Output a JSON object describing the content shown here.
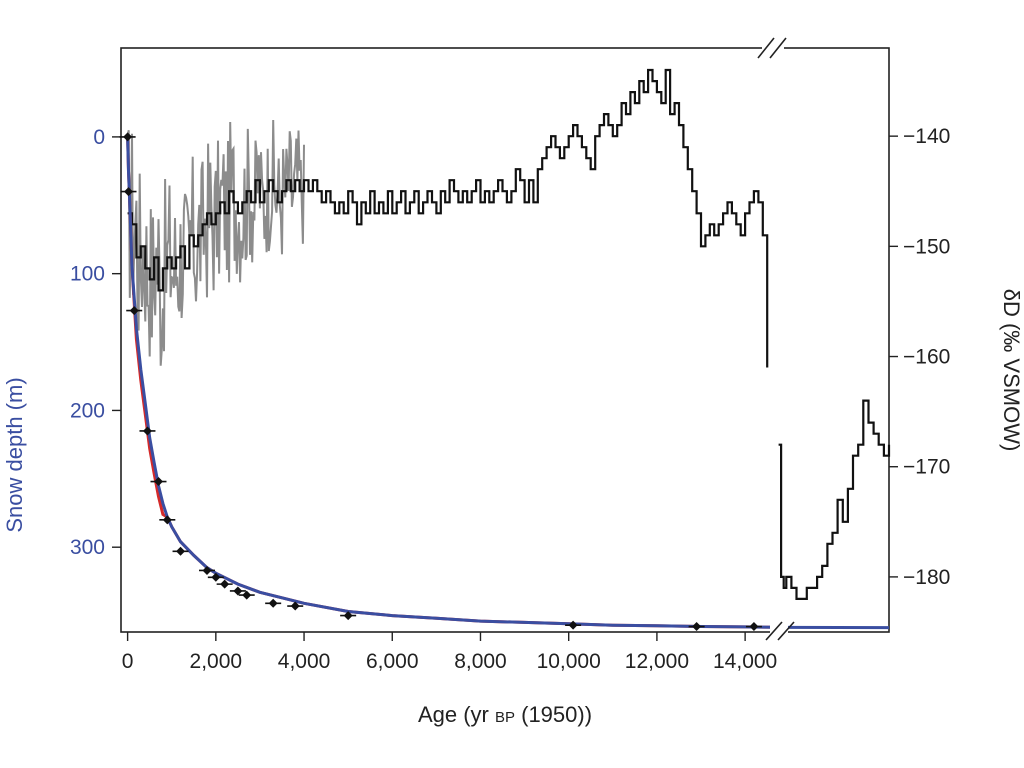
{
  "chart_data": {
    "type": "line",
    "xlabel_pre": "Age (yr ",
    "xlabel_bp": "BP",
    "xlabel_post": " (1950))",
    "ylabel_left": "Snow depth (m)",
    "ylabel_right": "δD (‰ VSMOW)",
    "x_ticks": [
      0,
      2000,
      4000,
      6000,
      8000,
      10000,
      12000,
      14000
    ],
    "x_tick_labels": [
      "0",
      "2,000",
      "4,000",
      "6,000",
      "8,000",
      "10,000",
      "12,000",
      "14,000"
    ],
    "x_break_at": 14700,
    "xlim_main": [
      -150,
      14700
    ],
    "xlim_after_break": [
      15000,
      17200
    ],
    "y_left_ticks": [
      0,
      100,
      200,
      300
    ],
    "y_left_tick_labels": [
      "0",
      "100",
      "200",
      "300"
    ],
    "ylim_left_reversed": [
      -65,
      362
    ],
    "y_right_ticks": [
      -140,
      -150,
      -160,
      -170,
      -180
    ],
    "y_right_tick_labels": [
      "−140",
      "−150",
      "−160",
      "−170",
      "−180"
    ],
    "ylim_right": [
      -185,
      -132
    ],
    "grid": false,
    "colors": {
      "isotope_highres": "#8c8c8c",
      "isotope_stepped": "#111111",
      "depth_age_model_red": "#d42a2a",
      "depth_age_model_blue": "#3a4ea1",
      "tie_points": "#111111",
      "left_axis_text": "#3a4ea1"
    },
    "series": [
      {
        "role": "isotope_stepped",
        "axis": "right",
        "x": [
          0,
          100,
          200,
          300,
          400,
          500,
          600,
          700,
          800,
          900,
          1000,
          1100,
          1200,
          1300,
          1400,
          1500,
          1600,
          1700,
          1800,
          1900,
          2000,
          2100,
          2200,
          2300,
          2400,
          2500,
          2600,
          2700,
          2800,
          2900,
          3000,
          3100,
          3200,
          3300,
          3400,
          3500,
          3600,
          3700,
          3800,
          3900,
          4000,
          4100,
          4200,
          4300,
          4400,
          4500,
          4600,
          4700,
          4800,
          4900,
          5000,
          5100,
          5200,
          5300,
          5400,
          5500,
          5600,
          5700,
          5800,
          5900,
          6000,
          6100,
          6200,
          6300,
          6400,
          6500,
          6600,
          6700,
          6800,
          6900,
          7000,
          7100,
          7200,
          7300,
          7400,
          7500,
          7600,
          7700,
          7800,
          7900,
          8000,
          8100,
          8200,
          8300,
          8400,
          8500,
          8600,
          8700,
          8800,
          8900,
          9000,
          9100,
          9200,
          9300,
          9400,
          9500,
          9600,
          9700,
          9800,
          9900,
          10000,
          10100,
          10200,
          10300,
          10400,
          10500,
          10600,
          10700,
          10800,
          10900,
          11000,
          11100,
          11200,
          11300,
          11400,
          11500,
          11600,
          11700,
          11800,
          11900,
          12000,
          12100,
          12200,
          12300,
          12400,
          12500,
          12600,
          12700,
          12800,
          12900,
          13000,
          13100,
          13200,
          13300,
          13400,
          13500,
          13600,
          13700,
          13800,
          13900,
          14000,
          14100,
          14200,
          14300,
          14400,
          14500
        ],
        "values": [
          -147,
          -148,
          -151,
          -150,
          -152,
          -153,
          -151,
          -154,
          -152,
          -151,
          -152,
          -151,
          -150,
          -152,
          -149,
          -150,
          -149,
          -148,
          -147,
          -148,
          -147,
          -146,
          -147,
          -145,
          -146,
          -147,
          -146,
          -145,
          -146,
          -144,
          -146,
          -145,
          -144,
          -145,
          -146,
          -145,
          -144,
          -145,
          -144,
          -145,
          -144,
          -145,
          -144,
          -145,
          -146,
          -145,
          -146,
          -147,
          -146,
          -147,
          -145,
          -146,
          -148,
          -146,
          -147,
          -145,
          -147,
          -146,
          -147,
          -145,
          -147,
          -146,
          -145,
          -147,
          -146,
          -145,
          -147,
          -146,
          -145,
          -146,
          -147,
          -145,
          -146,
          -144,
          -145,
          -146,
          -145,
          -146,
          -145,
          -144,
          -146,
          -145,
          -146,
          -145,
          -144,
          -145,
          -146,
          -145,
          -143,
          -144,
          -146,
          -144,
          -146,
          -143,
          -142,
          -141,
          -140,
          -141,
          -142,
          -141,
          -140,
          -139,
          -140,
          -141,
          -142,
          -143,
          -140,
          -139,
          -138,
          -139,
          -140,
          -139,
          -137,
          -138,
          -136,
          -137,
          -135,
          -136,
          -134,
          -135,
          -136,
          -137,
          -134,
          -138,
          -137,
          -139,
          -141,
          -143,
          -145,
          -147,
          -150,
          -149,
          -148,
          -149,
          -148,
          -147,
          -146,
          -147,
          -148,
          -149,
          -147,
          -146,
          -145,
          -146,
          -149,
          -161
        ],
        "x_after_break": [
          15050,
          15100,
          15150,
          15200,
          15300,
          15400,
          15500,
          15600,
          15700,
          15800,
          15900,
          16000,
          16100,
          16200,
          16300,
          16400,
          16500,
          16600,
          16700,
          16800,
          16900,
          17000,
          17100,
          17200
        ],
        "values_after_break": [
          -168,
          -180,
          -181,
          -180,
          -181,
          -182,
          -182,
          -181,
          -181,
          -180,
          -179,
          -177,
          -176,
          -173,
          -175,
          -172,
          -169,
          -168,
          -164,
          -166,
          -167,
          -168,
          -169,
          -168
        ]
      },
      {
        "role": "isotope_highres",
        "axis": "right",
        "x_range": [
          0,
          4000
        ],
        "n_points": 160
      },
      {
        "role": "depth_age_model",
        "axis": "left",
        "x": [
          0,
          20,
          50,
          100,
          200,
          300,
          400,
          500,
          600,
          700,
          800,
          900,
          1000,
          1200,
          1500,
          1800,
          2000,
          2500,
          3000,
          3500,
          4000,
          5000,
          6000,
          7000,
          8000,
          9000,
          10000,
          11000,
          12000,
          13000,
          14000,
          14700
        ],
        "values": [
          0,
          25,
          50,
          95,
          140,
          170,
          195,
          220,
          238,
          255,
          268,
          278,
          285,
          296,
          306,
          315,
          319,
          327,
          333,
          337,
          341,
          347,
          350,
          352,
          354,
          355,
          356,
          357,
          357.5,
          358,
          358.3,
          358.5
        ]
      },
      {
        "role": "tie_points",
        "axis": "left",
        "x": [
          0,
          20,
          150,
          450,
          700,
          900,
          1200,
          1800,
          2000,
          2200,
          2500,
          2700,
          3300,
          3800,
          5000,
          10100,
          12900,
          14200
        ],
        "values": [
          0,
          40,
          127,
          215,
          252,
          280,
          303,
          317,
          322,
          327,
          332,
          335,
          341,
          343,
          350,
          357,
          358,
          358
        ]
      }
    ]
  }
}
